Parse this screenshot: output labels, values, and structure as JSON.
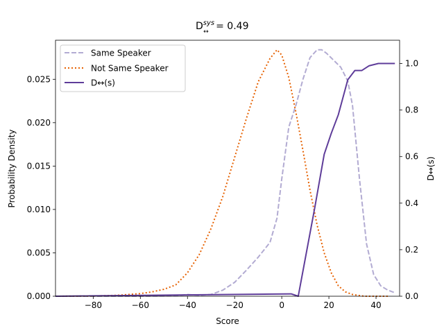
{
  "chart_data": {
    "type": "line",
    "title_main": "D",
    "title_sup": "sys",
    "title_sub": "↔",
    "title_rest": " = 0.49",
    "xlabel": "Score",
    "ylabel": "Probability Density",
    "y2label": "D↔(s)",
    "xlim": [
      -96,
      50
    ],
    "ylim": [
      0,
      0.0295
    ],
    "y2lim": [
      0,
      1.1
    ],
    "xticks": [
      -80,
      -60,
      -40,
      -20,
      0,
      20,
      40
    ],
    "yticks": [
      0.0,
      0.005,
      0.01,
      0.015,
      0.02,
      0.025
    ],
    "ytick_labels": [
      "0.000",
      "0.005",
      "0.010",
      "0.015",
      "0.020",
      "0.025"
    ],
    "y2ticks": [
      0.0,
      0.2,
      0.4,
      0.6,
      0.8,
      1.0
    ],
    "y2tick_labels": [
      "0.0",
      "0.2",
      "0.4",
      "0.6",
      "0.8",
      "1.0"
    ],
    "legend": {
      "position": "top-left"
    },
    "series": [
      {
        "name": "Same Speaker",
        "axis": "left",
        "style": "dashed",
        "color": "#b2abd2",
        "x": [
          -96,
          -60,
          -45,
          -40,
          -35,
          -30,
          -25,
          -20,
          -15,
          -10,
          -5,
          -2,
          0,
          3,
          6,
          9,
          12,
          15,
          17,
          19,
          22,
          25,
          28,
          30,
          33,
          36,
          39,
          42,
          45,
          48
        ],
        "y": [
          0,
          0,
          5e-05,
          0.0002,
          0.0001,
          0.0002,
          0.0007,
          0.0016,
          0.003,
          0.0045,
          0.0062,
          0.009,
          0.0135,
          0.0195,
          0.022,
          0.025,
          0.0275,
          0.0284,
          0.0284,
          0.028,
          0.0272,
          0.0264,
          0.0248,
          0.022,
          0.0135,
          0.006,
          0.0025,
          0.0012,
          0.0007,
          0.0004
        ]
      },
      {
        "name": "Not Same Speaker",
        "axis": "left",
        "style": "dotted",
        "color": "#e66101",
        "x": [
          -96,
          -80,
          -70,
          -60,
          -55,
          -50,
          -45,
          -40,
          -35,
          -30,
          -25,
          -20,
          -15,
          -10,
          -5,
          -2,
          0,
          3,
          6,
          9,
          12,
          15,
          18,
          21,
          24,
          27,
          30,
          35,
          40,
          45
        ],
        "y": [
          0,
          2e-05,
          0.0001,
          0.0003,
          0.0005,
          0.0008,
          0.0013,
          0.0027,
          0.0048,
          0.0078,
          0.0115,
          0.016,
          0.0205,
          0.0247,
          0.0274,
          0.0284,
          0.0278,
          0.0252,
          0.0212,
          0.0168,
          0.0122,
          0.0082,
          0.005,
          0.0027,
          0.0012,
          0.0005,
          0.0002,
          0,
          0,
          0
        ]
      },
      {
        "name": "D↔(s)",
        "axis": "right",
        "style": "solid",
        "color": "#5e3c99",
        "x": [
          -96,
          4,
          7,
          14,
          18,
          21,
          24,
          28,
          31,
          34,
          37,
          41,
          45,
          48
        ],
        "y": [
          0,
          0.01,
          0,
          0.38,
          0.61,
          0.7,
          0.78,
          0.93,
          0.97,
          0.97,
          0.99,
          1.0,
          1.0,
          1.0
        ]
      }
    ]
  }
}
